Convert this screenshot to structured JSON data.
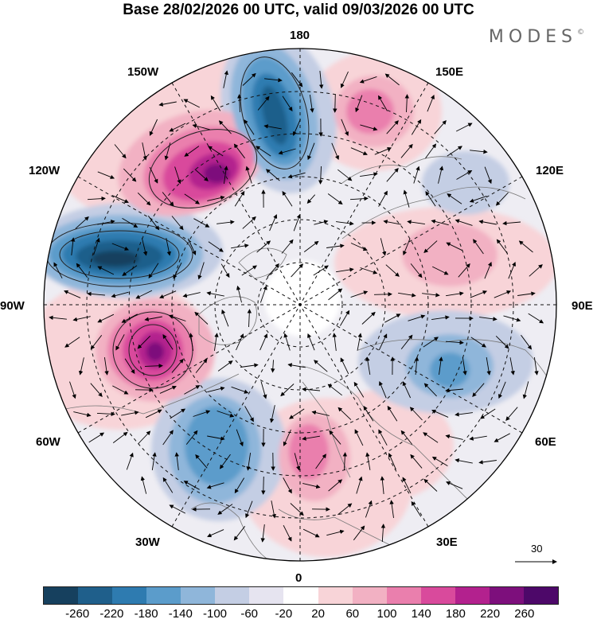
{
  "title": "Base 28/02/2026 00 UTC, valid 09/03/2026 00 UTC",
  "brand": {
    "name": "MODES",
    "mark": "©"
  },
  "longitude_labels": {
    "top": "180",
    "bottom": "0",
    "left": "90W",
    "right": "90E",
    "upper_left_1": "150W",
    "upper_left_2": "120W",
    "upper_right_1": "150E",
    "upper_right_2": "120E",
    "lower_left_1": "60W",
    "lower_left_2": "30W",
    "lower_right_1": "60E",
    "lower_right_2": "30E"
  },
  "reference_vector": {
    "label": "30"
  },
  "colorbar": {
    "ticks": [
      "-260",
      "-220",
      "-180",
      "-140",
      "-100",
      "-60",
      "-20",
      "20",
      "60",
      "100",
      "140",
      "180",
      "220",
      "260"
    ],
    "colors": [
      "#16405e",
      "#1f5f8b",
      "#2e7bb0",
      "#5b9ccb",
      "#8fb6da",
      "#c4cee4",
      "#e6e4f0",
      "#ffffff",
      "#f8d4d8",
      "#f2b1c3",
      "#ea7fad",
      "#d94a9c",
      "#b3218e",
      "#7d0f7c",
      "#4d0869"
    ]
  },
  "anomaly_colors": {
    "positive": "#d94a9c",
    "negative": "#2e7bb0",
    "land": "#9e9e9e"
  }
}
